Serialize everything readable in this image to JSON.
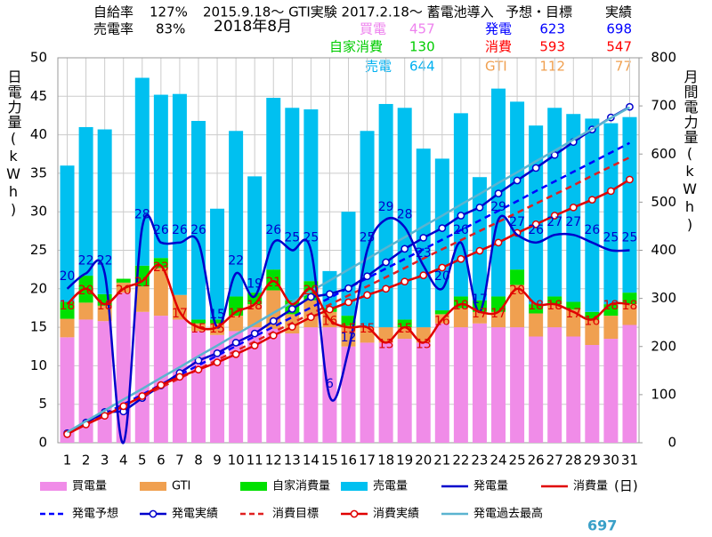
{
  "header": {
    "self_sufficiency_label": "自給率",
    "self_sufficiency": "127%",
    "sell_rate_label": "売電率",
    "sell_rate": "83%",
    "history": "2015.9.18～  GTI実験 2017.2.18～ 蓄電池導入",
    "month": "2018年8月",
    "plan_heading": "予想・目標",
    "actual_heading": "実績"
  },
  "summary": {
    "buy": {
      "label": "買電",
      "value": "457",
      "color": "#ee82ee"
    },
    "self": {
      "label": "自家消費",
      "value": "130",
      "color": "#00cc00"
    },
    "sell": {
      "label": "売電",
      "value": "644",
      "color": "#00b0f0"
    },
    "gen": {
      "label": "発電",
      "plan": "623",
      "actual": "698",
      "color": "#0000ff"
    },
    "cons": {
      "label": "消費",
      "plan": "593",
      "actual": "547",
      "color": "#ff0000"
    },
    "gti": {
      "label": "GTI",
      "plan": "112",
      "actual": "77",
      "color": "#f0a050"
    }
  },
  "footer": {
    "past_max_total": "697"
  },
  "chart_data": {
    "type": "bar",
    "stacked": true,
    "y_label": "日電力量(kWh)",
    "y2_label": "月間電力量(kWh)",
    "x_label": "(日)",
    "categories": [
      "1",
      "2",
      "3",
      "4",
      "5",
      "6",
      "7",
      "8",
      "9",
      "10",
      "11",
      "12",
      "13",
      "14",
      "15",
      "16",
      "17",
      "18",
      "19",
      "20",
      "21",
      "22",
      "23",
      "24",
      "25",
      "26",
      "27",
      "28",
      "29",
      "30",
      "31"
    ],
    "ylim": [
      0,
      50
    ],
    "yticks": [
      0,
      5,
      10,
      15,
      20,
      25,
      30,
      35,
      40,
      45,
      50
    ],
    "y2lim": [
      0,
      800
    ],
    "y2ticks": [
      0,
      100,
      200,
      300,
      400,
      500,
      600,
      700,
      800
    ],
    "grid": true,
    "series": [
      {
        "name": "買電量",
        "type": "bar",
        "color": "#f08ce8",
        "values": [
          13.7,
          16,
          15.8,
          19.5,
          17,
          16.5,
          16,
          14.5,
          14,
          14.5,
          15,
          14.8,
          14.2,
          15,
          15,
          12.5,
          13,
          13,
          13.5,
          13,
          15.5,
          15,
          15.5,
          15,
          15,
          13.8,
          15,
          13.8,
          12.7,
          13.5,
          15.3
        ]
      },
      {
        "name": "GTI",
        "type": "bar",
        "color": "#f0a050",
        "values": [
          2.4,
          2.2,
          2,
          1.3,
          3.3,
          6.2,
          3.2,
          1,
          1.5,
          2,
          3,
          5,
          2.5,
          3.5,
          2,
          2.7,
          2,
          2,
          1.5,
          2,
          1.2,
          2.5,
          1.5,
          2,
          5.5,
          3,
          3,
          3.5,
          3.3,
          3,
          2.7
        ]
      },
      {
        "name": "自家消費量",
        "type": "bar",
        "color": "#00e000",
        "values": [
          2.2,
          3.5,
          1.5,
          0.5,
          2.7,
          1.3,
          0,
          0.5,
          0.5,
          2.5,
          1.5,
          2.7,
          1.8,
          2.5,
          0.5,
          1.3,
          0,
          0,
          1,
          0,
          0.5,
          1.5,
          1.5,
          2,
          2,
          1.2,
          1,
          1,
          1,
          1.5,
          1.5
        ]
      },
      {
        "name": "売電量",
        "type": "bar",
        "color": "#00c0f0",
        "values": [
          17.7,
          19.3,
          21.4,
          0,
          24.4,
          21.2,
          26.1,
          25.8,
          14.4,
          21.5,
          15.1,
          22.3,
          25,
          22.3,
          4.8,
          13.5,
          25.5,
          29,
          27.5,
          23.2,
          19.7,
          23.8,
          16,
          27,
          21.8,
          23.2,
          24.5,
          24.4,
          25.1,
          23.5,
          22.8
        ]
      },
      {
        "name": "発電量",
        "type": "line",
        "smooth": true,
        "color": "#0000cc",
        "label_pos": "above",
        "values": [
          20,
          22,
          22,
          0,
          28,
          26,
          26,
          26,
          15,
          22,
          19,
          26,
          25,
          25,
          6,
          12,
          25,
          29,
          28,
          23,
          20,
          26,
          17,
          29,
          27,
          26,
          27,
          27,
          26,
          25,
          25
        ],
        "value_labels": [
          "20",
          "22",
          "22",
          null,
          "28",
          "26",
          "26",
          "26",
          "15",
          "22",
          "19",
          "26",
          "25",
          "25",
          "6",
          "12",
          "25",
          "29",
          "28",
          "23",
          "20",
          "26",
          "17",
          "29",
          "27",
          "26",
          "27",
          "27",
          "26",
          "25",
          "25"
        ]
      },
      {
        "name": "消費量",
        "type": "line",
        "smooth": true,
        "color": "#e00000",
        "label_pos": "on",
        "values": [
          18,
          20,
          18,
          20,
          21,
          23,
          17,
          15,
          15,
          17,
          18,
          21,
          18,
          20,
          16,
          15,
          15,
          13,
          15,
          13,
          16,
          18,
          17,
          17,
          20,
          18,
          18,
          17,
          16,
          18,
          18
        ],
        "value_labels": [
          "18",
          "20",
          "18",
          "20",
          "21",
          "23",
          "17",
          "15",
          "15",
          "17",
          "18",
          "21",
          null,
          "20",
          "16",
          "15",
          "15",
          "13",
          "15",
          "13",
          "16",
          "18",
          "17",
          "17",
          "20",
          "18",
          "18",
          "17",
          "16",
          "18",
          "18"
        ]
      },
      {
        "name": "発電予想",
        "type": "line",
        "axis": "y2",
        "dash": true,
        "color": "#0000ff",
        "values": [
          20,
          40,
          60,
          80,
          100,
          121,
          141,
          161,
          181,
          201,
          221,
          241,
          261,
          281,
          301,
          322,
          342,
          362,
          382,
          402,
          422,
          442,
          462,
          482,
          502,
          523,
          543,
          563,
          583,
          603,
          623
        ]
      },
      {
        "name": "発電実績",
        "type": "line",
        "axis": "y2",
        "markers": true,
        "color": "#0000cc",
        "values": [
          20,
          42,
          64,
          65,
          93,
          119,
          145,
          171,
          186,
          208,
          227,
          253,
          278,
          303,
          309,
          321,
          346,
          375,
          403,
          426,
          446,
          472,
          489,
          518,
          545,
          571,
          598,
          625,
          651,
          676,
          698
        ]
      },
      {
        "name": "消費目標",
        "type": "line",
        "axis": "y2",
        "dash": true,
        "color": "#e02020",
        "values": [
          19,
          38,
          57,
          77,
          96,
          115,
          134,
          153,
          172,
          191,
          210,
          230,
          249,
          268,
          287,
          306,
          325,
          344,
          363,
          383,
          402,
          421,
          440,
          459,
          478,
          497,
          516,
          535,
          555,
          574,
          593
        ]
      },
      {
        "name": "消費実績",
        "type": "line",
        "axis": "y2",
        "markers": true,
        "color": "#e00000",
        "values": [
          18,
          38,
          56,
          76,
          97,
          120,
          137,
          152,
          167,
          184,
          202,
          223,
          241,
          261,
          277,
          292,
          307,
          320,
          335,
          348,
          364,
          382,
          399,
          416,
          436,
          454,
          472,
          489,
          505,
          523,
          547
        ]
      },
      {
        "name": "発電過去最高",
        "type": "line",
        "axis": "y2",
        "color": "#5ab4d0",
        "values": [
          22,
          45,
          67,
          90,
          112,
          135,
          157,
          180,
          202,
          225,
          247,
          270,
          292,
          315,
          337,
          360,
          382,
          405,
          427,
          450,
          472,
          495,
          517,
          540,
          562,
          585,
          607,
          630,
          652,
          675,
          697
        ]
      }
    ]
  }
}
